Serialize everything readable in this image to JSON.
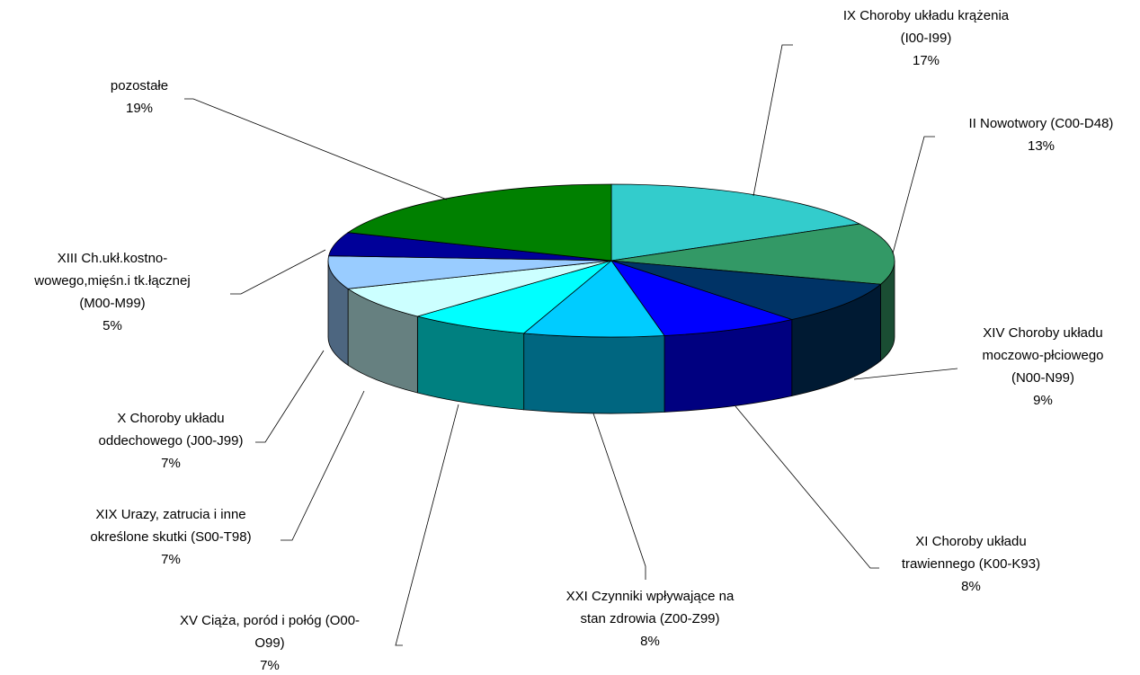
{
  "chart_data": {
    "type": "pie",
    "categories": [
      "IX Choroby układu krążenia\n(I00-I99)",
      "II Nowotwory (C00-D48)",
      "XIV Choroby układu\nmoczowo-płciowego\n(N00-N99)",
      "XI Choroby układu\ntrawiennego (K00-K93)",
      "XXI Czynniki wpływające na\nstan zdrowia (Z00-Z99)",
      "XV Ciąża, poród i połóg (O00-\nO99)",
      "XIX Urazy, zatrucia i inne\nokreślone skutki (S00-T98)",
      "X Choroby układu\noddechowego (J00-J99)",
      "XIII Ch.ukł.kostno-\nwowego,mięśn.i tk.łącznej\n(M00-M99)",
      "pozostałe"
    ],
    "values": [
      17,
      13,
      9,
      8,
      8,
      7,
      7,
      7,
      5,
      19
    ],
    "value_labels": [
      "17%",
      "13%",
      "9%",
      "8%",
      "8%",
      "7%",
      "7%",
      "7%",
      "5%",
      "19%"
    ],
    "colors": [
      "#33CCCC",
      "#339966",
      "#003366",
      "#0000FF",
      "#00CCFF",
      "#00FFFF",
      "#CCFFFF",
      "#99CCFF",
      "#000099",
      "#008000"
    ]
  }
}
